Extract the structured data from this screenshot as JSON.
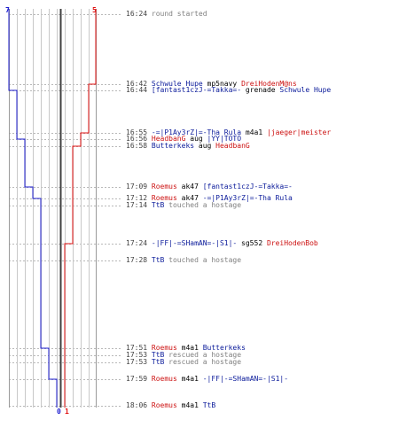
{
  "colors": {
    "blue": "#1c1ccf",
    "red": "#e01010",
    "grid": "#c8c8c8",
    "dash": "#b8b8b8",
    "center": "#404040"
  },
  "counts": {
    "blue_top": "7",
    "red_top": "5",
    "blue_bottom": "0",
    "red_bottom": "1"
  },
  "chart_data": {
    "type": "line",
    "title": "",
    "series": [
      {
        "name": "",
        "color": "blue",
        "start_players": 7
      },
      {
        "name": "",
        "color": "red",
        "start_players": 5
      }
    ]
  },
  "log": [
    {
      "time": "16:24",
      "parts": [
        {
          "text": "round started",
          "c": "grey"
        }
      ]
    },
    {
      "time": "16:42",
      "parts": [
        {
          "text": "Schwule Hupe",
          "c": "blue"
        },
        {
          "text": " mp5navy ",
          "c": "blk"
        },
        {
          "text": "DreiHodenM@ns",
          "c": "red"
        }
      ]
    },
    {
      "time": "16:44",
      "parts": [
        {
          "text": "[fantast1czJ-=Takka=-",
          "c": "blue"
        },
        {
          "text": " grenade ",
          "c": "blk"
        },
        {
          "text": "Schwule Hupe",
          "c": "blue"
        }
      ]
    },
    {
      "time": "16:55",
      "parts": [
        {
          "text": "-=|P1Ay3rZ|=-Tha Rula",
          "c": "blue"
        },
        {
          "text": " m4a1 ",
          "c": "blk"
        },
        {
          "text": "|jaeger|meister",
          "c": "red"
        }
      ]
    },
    {
      "time": "16:56",
      "parts": [
        {
          "text": "HeadbanG",
          "c": "red"
        },
        {
          "text": " aug ",
          "c": "blk"
        },
        {
          "text": "|YY|TOTO",
          "c": "blue"
        }
      ]
    },
    {
      "time": "16:58",
      "parts": [
        {
          "text": "Butterkeks",
          "c": "blue"
        },
        {
          "text": " aug ",
          "c": "blk"
        },
        {
          "text": "HeadbanG",
          "c": "red"
        }
      ]
    },
    {
      "time": "17:09",
      "parts": [
        {
          "text": "Roemus",
          "c": "red"
        },
        {
          "text": " ak47 ",
          "c": "blk"
        },
        {
          "text": "[fantast1czJ-=Takka=-",
          "c": "blue"
        }
      ]
    },
    {
      "time": "17:12",
      "parts": [
        {
          "text": "Roemus",
          "c": "red"
        },
        {
          "text": " ak47 ",
          "c": "blk"
        },
        {
          "text": "-=|P1Ay3rZ|=-Tha Rula",
          "c": "blue"
        }
      ]
    },
    {
      "time": "17:14",
      "parts": [
        {
          "text": "TtB",
          "c": "blue"
        },
        {
          "text": " touched a hostage",
          "c": "grey"
        }
      ]
    },
    {
      "time": "17:24",
      "parts": [
        {
          "text": "-|FF|-=SHamAN=-|S1|-",
          "c": "blue"
        },
        {
          "text": " sg552 ",
          "c": "blk"
        },
        {
          "text": "DreiHodenBob",
          "c": "red"
        }
      ]
    },
    {
      "time": "17:28",
      "parts": [
        {
          "text": "TtB",
          "c": "blue"
        },
        {
          "text": " touched a hostage",
          "c": "grey"
        }
      ]
    },
    {
      "time": "17:51",
      "parts": [
        {
          "text": "Roemus",
          "c": "red"
        },
        {
          "text": " m4a1 ",
          "c": "blk"
        },
        {
          "text": "Butterkeks",
          "c": "blue"
        }
      ]
    },
    {
      "time": "17:53",
      "parts": [
        {
          "text": "TtB",
          "c": "blue"
        },
        {
          "text": " rescued a hostage",
          "c": "grey"
        }
      ]
    },
    {
      "time": "17:53",
      "parts": [
        {
          "text": "TtB",
          "c": "blue"
        },
        {
          "text": " rescued a hostage",
          "c": "grey"
        }
      ]
    },
    {
      "time": "17:59",
      "parts": [
        {
          "text": "Roemus",
          "c": "red"
        },
        {
          "text": " m4a1 ",
          "c": "blk"
        },
        {
          "text": "-|FF|-=SHamAN=-|S1|-",
          "c": "blue"
        }
      ]
    },
    {
      "time": "18:06",
      "parts": [
        {
          "text": "Roemus",
          "c": "red"
        },
        {
          "text": " m4a1 ",
          "c": "blk"
        },
        {
          "text": "TtB",
          "c": "blue"
        }
      ]
    }
  ]
}
